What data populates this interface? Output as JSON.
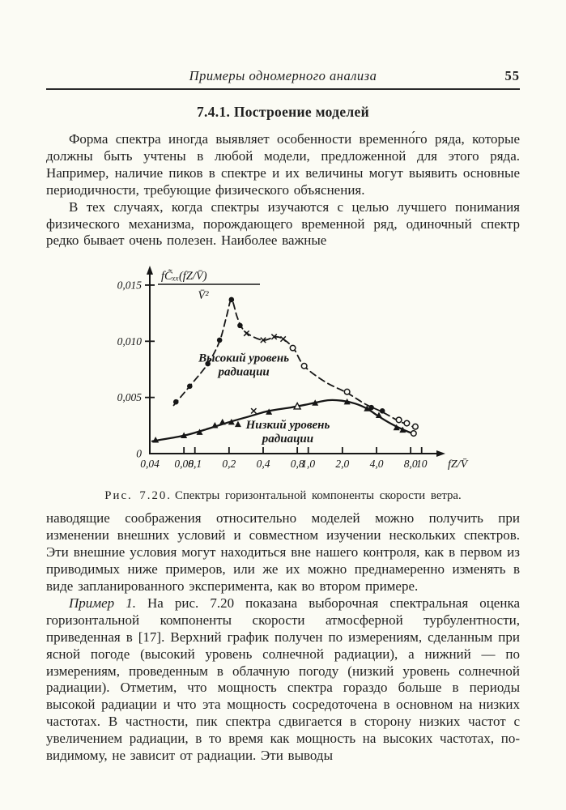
{
  "page": {
    "header": {
      "running_title": "Примеры одномерного анализа",
      "page_number": "55"
    },
    "section_heading": "7.4.1. Построение моделей",
    "paragraphs": {
      "p1": "Форма спектра иногда выявляет особенности временно́го ряда, которые должны быть учтены в любой модели, предложенной для этого ряда. Например, наличие пиков в спектре и их величины могут выявить основные периодичности, требующие физического объяснения.",
      "p2": "В тех случаях, когда спектры изучаются с целью лучшего понимания физического механизма, порождающего временной ряд, одиночный спектр редко бывает очень полезен. Наиболее важные",
      "p3": "наводящие соображения относительно моделей можно получить при изменении внешних условий и совместном изучении нескольких спектров. Эти внешние условия могут находиться вне нашего контроля, как в первом из приводимых ниже примеров, или же их можно преднамеренно изменять в виде запланированного эксперимента, как во втором примере.",
      "p4_lead": "Пример 1.",
      "p4_rest": " На рис. 7.20 показана выборочная спектральная оценка горизонтальной компоненты скорости атмосферной турбулентности, приведенная в [17]. Верхний график получен по измерениям, сделанным при ясной погоде (высокий уровень солнечной радиации), а нижний — по измерениям, проведенным в облачную погоду (низкий уровень солнечной радиации). Отметим, что мощность спектра гораздо больше в периоды высокой радиации и что эта мощность сосредоточена в основном на низких частотах. В частности, пик спектра сдвигается в сторону низких частот с увеличением радиации, в то время как мощность на высоких частотах, по-видимому, не зависит от радиации. Эти выводы"
    },
    "figure_caption": {
      "label": "Рис. 7.20.",
      "text": "Спектры горизонтальной компоненты скорости ветра."
    }
  },
  "chart_data": {
    "type": "line",
    "x_scale": "log",
    "title": "",
    "xlabel": "fZ/V̄",
    "ylabel_numerator": "fC̃ₓₓ(fZ/V̄)",
    "ylabel_denominator": "V̄²",
    "xlim": [
      0.04,
      12
    ],
    "ylim": [
      0,
      0.016
    ],
    "grid": false,
    "x_axis": {
      "ticks": [
        {
          "f": 0.04,
          "label": "0,04",
          "tick": false
        },
        {
          "f": 0.08,
          "label": "0,08",
          "tick": true
        },
        {
          "f": 0.1,
          "label": "0,1",
          "tick": true
        },
        {
          "f": 0.2,
          "label": "0,2",
          "tick": true
        },
        {
          "f": 0.4,
          "label": "0,4",
          "tick": true
        },
        {
          "f": 0.8,
          "label": "0,8",
          "tick": true
        },
        {
          "f": 1.0,
          "label": "1,0",
          "tick": true
        },
        {
          "f": 2.0,
          "label": "2,0",
          "tick": true
        },
        {
          "f": 4.0,
          "label": "4,0",
          "tick": true
        },
        {
          "f": 8.0,
          "label": "8,0",
          "tick": true
        },
        {
          "f": 10,
          "label": "10",
          "tick": true
        }
      ]
    },
    "y_axis": {
      "ticks": [
        {
          "v": 0,
          "label": "0"
        },
        {
          "v": 0.005,
          "label": "0,005"
        },
        {
          "v": 0.01,
          "label": "0,010"
        },
        {
          "v": 0.015,
          "label": "0,015"
        }
      ]
    },
    "series": [
      {
        "name": "Высокий уровень радиации",
        "style": "dashed",
        "line": [
          [
            0.065,
            0.0043
          ],
          [
            0.09,
            0.006
          ],
          [
            0.13,
            0.008
          ],
          [
            0.165,
            0.01
          ],
          [
            0.19,
            0.0122
          ],
          [
            0.21,
            0.0137
          ],
          [
            0.235,
            0.0122
          ],
          [
            0.26,
            0.0112
          ],
          [
            0.3,
            0.0106
          ],
          [
            0.4,
            0.0101
          ],
          [
            0.52,
            0.0104
          ],
          [
            0.62,
            0.0101
          ],
          [
            0.75,
            0.0093
          ],
          [
            0.92,
            0.0078
          ],
          [
            1.4,
            0.0064
          ],
          [
            2.2,
            0.0054
          ],
          [
            3.2,
            0.0044
          ],
          [
            4.5,
            0.0037
          ],
          [
            6.3,
            0.0029
          ],
          [
            8.8,
            0.0023
          ]
        ],
        "points": [
          [
            0.068,
            0.0046,
            "dot"
          ],
          [
            0.09,
            0.006,
            "dot"
          ],
          [
            0.13,
            0.008,
            "dot"
          ],
          [
            0.165,
            0.0101,
            "dot"
          ],
          [
            0.21,
            0.0137,
            "dot"
          ],
          [
            0.25,
            0.0114,
            "dot"
          ],
          [
            0.285,
            0.0107,
            "x"
          ],
          [
            0.4,
            0.0101,
            "x"
          ],
          [
            0.5,
            0.0104,
            "x"
          ],
          [
            0.6,
            0.0102,
            "x"
          ],
          [
            0.73,
            0.0094,
            "circle"
          ],
          [
            0.92,
            0.0078,
            "circle"
          ],
          [
            2.2,
            0.0055,
            "circle"
          ],
          [
            3.6,
            0.0041,
            "dot"
          ],
          [
            4.5,
            0.0038,
            "dot"
          ],
          [
            6.3,
            0.003,
            "circle"
          ],
          [
            7.4,
            0.0027,
            "circle"
          ],
          [
            8.8,
            0.0024,
            "circle"
          ]
        ]
      },
      {
        "name": "Низкий уровень радиации",
        "style": "solid",
        "line": [
          [
            0.042,
            0.0011
          ],
          [
            0.08,
            0.0016
          ],
          [
            0.12,
            0.0021
          ],
          [
            0.2,
            0.0028
          ],
          [
            0.3,
            0.0033
          ],
          [
            0.45,
            0.0038
          ],
          [
            0.7,
            0.0041
          ],
          [
            1.0,
            0.0044
          ],
          [
            1.5,
            0.00475
          ],
          [
            2.0,
            0.0047
          ],
          [
            2.6,
            0.00445
          ],
          [
            3.3,
            0.004
          ],
          [
            4.2,
            0.0033
          ],
          [
            5.5,
            0.0026
          ],
          [
            7.0,
            0.0021
          ],
          [
            8.8,
            0.0017
          ]
        ],
        "points": [
          [
            0.045,
            0.0012,
            "tri"
          ],
          [
            0.08,
            0.0016,
            "tri"
          ],
          [
            0.11,
            0.0019,
            "tri"
          ],
          [
            0.15,
            0.0025,
            "tri"
          ],
          [
            0.175,
            0.0028,
            "tri"
          ],
          [
            0.21,
            0.0028,
            "tri"
          ],
          [
            0.24,
            0.0026,
            "tri"
          ],
          [
            0.33,
            0.0038,
            "x"
          ],
          [
            0.45,
            0.0037,
            "tri"
          ],
          [
            0.8,
            0.0042,
            "triopen"
          ],
          [
            1.15,
            0.0045,
            "tri"
          ],
          [
            2.2,
            0.0046,
            "tri"
          ],
          [
            3.3,
            0.004,
            "tri"
          ],
          [
            4.2,
            0.0034,
            "tri"
          ],
          [
            6.0,
            0.0023,
            "tri"
          ],
          [
            6.8,
            0.0021,
            "tri"
          ],
          [
            8.5,
            0.0018,
            "circle"
          ]
        ]
      }
    ],
    "annotations": [
      {
        "lines": [
          "Высокий уровень",
          "радиации"
        ],
        "f": 0.27,
        "v": 0.0082
      },
      {
        "lines": [
          "Низкий уровень",
          "радиации"
        ],
        "f": 0.66,
        "v": 0.00224
      }
    ]
  }
}
